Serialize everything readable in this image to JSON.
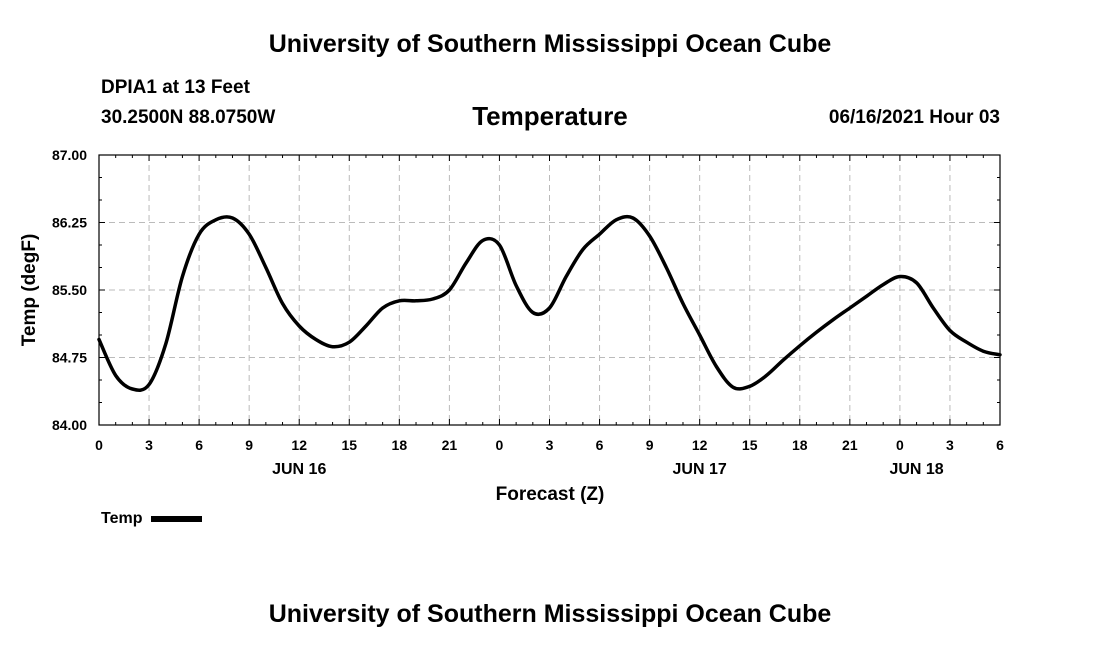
{
  "header": {
    "institution": "University of Southern Mississippi Ocean Cube",
    "station": "DPIA1 at 13 Feet",
    "coordinates": "30.2500N  88.0750W",
    "datetime": "06/16/2021 Hour 03"
  },
  "footer": {
    "institution": "University of Southern Mississippi Ocean Cube"
  },
  "legend": {
    "label": "Temp"
  },
  "colors": {
    "line": "#000000",
    "grid": "#bbbbbb"
  },
  "chart_data": {
    "type": "line",
    "title": "Temperature",
    "xlabel": "Forecast (Z)",
    "ylabel": "Temp (degF)",
    "xlim": [
      0,
      54
    ],
    "ylim": [
      84.0,
      87.0
    ],
    "grid": true,
    "legend_position": "bottom-left",
    "x_ticks": [
      0,
      3,
      6,
      9,
      12,
      15,
      18,
      21,
      24,
      27,
      30,
      33,
      36,
      39,
      42,
      45,
      48,
      51,
      54
    ],
    "x_tick_labels": [
      "0",
      "3",
      "6",
      "9",
      "12",
      "15",
      "18",
      "21",
      "0",
      "3",
      "6",
      "9",
      "12",
      "15",
      "18",
      "21",
      "0",
      "3",
      "6"
    ],
    "date_labels": [
      {
        "x": 12,
        "label": "JUN 16"
      },
      {
        "x": 36,
        "label": "JUN 17"
      },
      {
        "x": 49,
        "label": "JUN 18"
      }
    ],
    "y_ticks": [
      84.0,
      84.75,
      85.5,
      86.25,
      87.0
    ],
    "y_tick_labels": [
      "84.00",
      "84.75",
      "85.50",
      "86.25",
      "87.00"
    ],
    "series": [
      {
        "name": "Temp",
        "x": [
          0,
          1,
          2,
          3,
          4,
          5,
          6,
          7,
          8,
          9,
          10,
          11,
          12,
          13,
          14,
          15,
          16,
          17,
          18,
          19,
          20,
          21,
          22,
          23,
          24,
          25,
          26,
          27,
          28,
          29,
          30,
          31,
          32,
          33,
          34,
          35,
          36,
          37,
          38,
          39,
          40,
          41,
          42,
          43,
          44,
          45,
          46,
          47,
          48,
          49,
          50,
          51,
          52,
          53,
          54
        ],
        "values": [
          84.95,
          84.55,
          84.4,
          84.45,
          84.9,
          85.65,
          86.12,
          86.28,
          86.3,
          86.12,
          85.75,
          85.35,
          85.1,
          84.95,
          84.87,
          84.92,
          85.1,
          85.3,
          85.38,
          85.38,
          85.4,
          85.5,
          85.8,
          86.05,
          86.0,
          85.55,
          85.25,
          85.3,
          85.65,
          85.95,
          86.12,
          86.28,
          86.3,
          86.1,
          85.75,
          85.35,
          85.0,
          84.65,
          84.42,
          84.43,
          84.55,
          84.72,
          84.88,
          85.03,
          85.17,
          85.3,
          85.43,
          85.56,
          85.65,
          85.58,
          85.3,
          85.05,
          84.92,
          84.82,
          84.78
        ]
      }
    ]
  }
}
